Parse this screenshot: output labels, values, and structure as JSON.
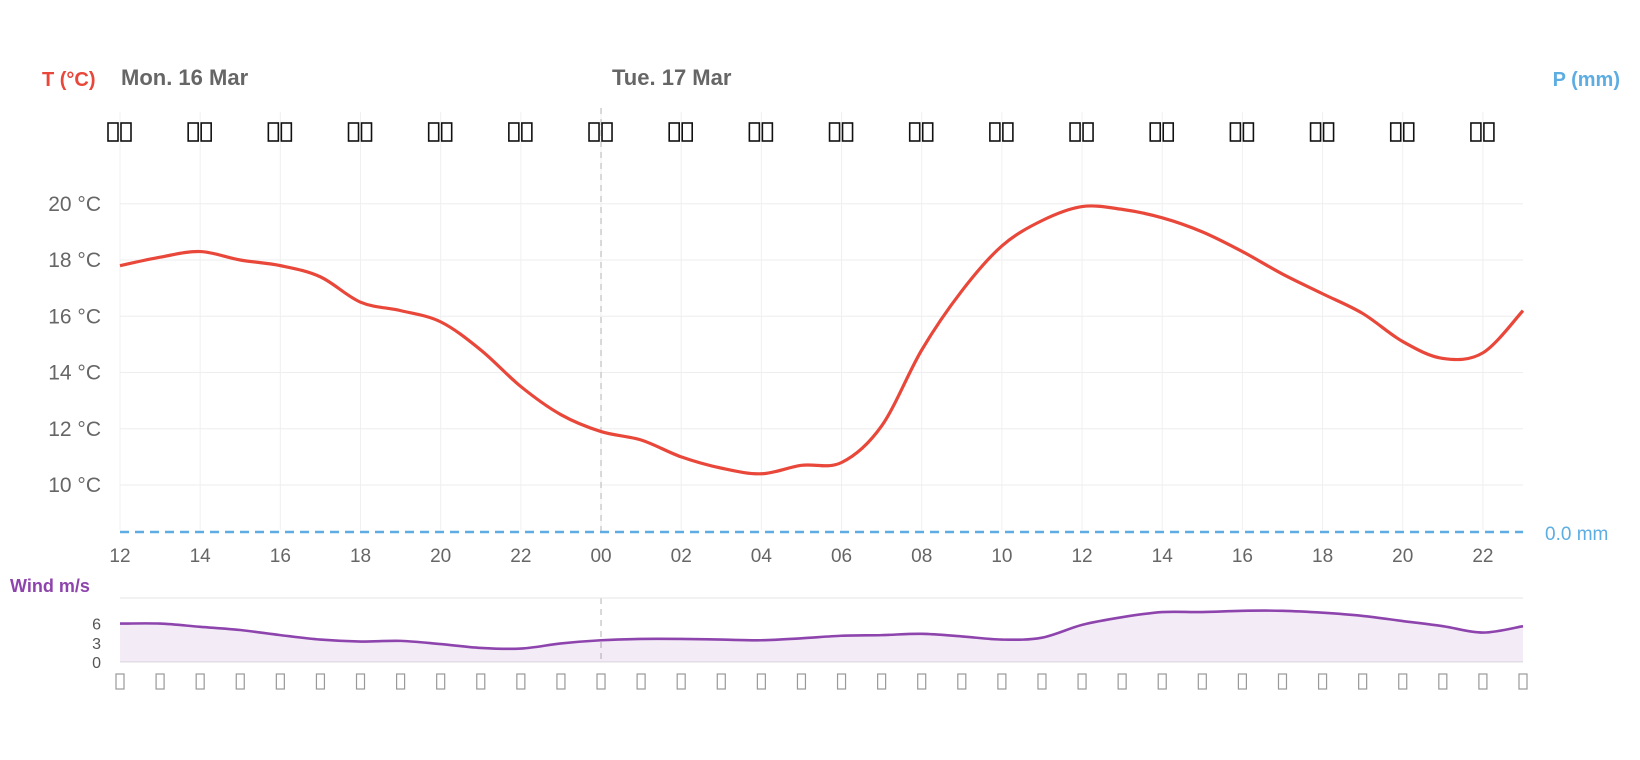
{
  "chart_data": [
    {
      "type": "line",
      "ylabel": "T (°C)",
      "y2label": "P (mm)",
      "days": [
        "Mon. 16 Mar",
        "Tue. 17 Mar"
      ],
      "x": [
        "12",
        "13",
        "14",
        "15",
        "16",
        "17",
        "18",
        "19",
        "20",
        "21",
        "22",
        "23",
        "00",
        "01",
        "02",
        "03",
        "04",
        "05",
        "06",
        "07",
        "08",
        "09",
        "10",
        "11",
        "12",
        "13",
        "14",
        "15",
        "16",
        "17",
        "18",
        "19",
        "20",
        "21",
        "22",
        "23"
      ],
      "x_ticks": [
        "12",
        "14",
        "16",
        "18",
        "20",
        "22",
        "00",
        "02",
        "04",
        "06",
        "08",
        "10",
        "12",
        "14",
        "16",
        "18",
        "20",
        "22"
      ],
      "y_ticks": [
        "20 °C",
        "18 °C",
        "16 °C",
        "14 °C",
        "12 °C",
        "10 °C"
      ],
      "ylim": [
        8.4,
        21.2
      ],
      "icon_row": "weather-icons",
      "series": [
        {
          "name": "T (°C)",
          "color": "#e8473a",
          "values": [
            17.8,
            18.1,
            18.3,
            18.0,
            17.8,
            17.4,
            16.5,
            16.2,
            15.8,
            14.8,
            13.5,
            12.5,
            11.9,
            11.6,
            11.0,
            10.6,
            10.4,
            10.7,
            10.8,
            12.1,
            14.8,
            16.9,
            18.5,
            19.4,
            19.9,
            19.8,
            19.5,
            19.0,
            18.3,
            17.5,
            16.8,
            16.1,
            15.1,
            14.5,
            14.7,
            16.2
          ]
        },
        {
          "name": "P (mm)",
          "color": "#5dade2",
          "values_constant": 0.0,
          "label": "0.0 mm"
        }
      ],
      "grid": true
    },
    {
      "type": "area",
      "ylabel": "Wind m/s",
      "y_ticks": [
        "6",
        "3",
        "0"
      ],
      "ylim": [
        0,
        10
      ],
      "series": [
        {
          "name": "Wind m/s",
          "color": "#8e44ad",
          "values": [
            6.0,
            6.0,
            5.5,
            5.0,
            4.2,
            3.5,
            3.2,
            3.3,
            2.8,
            2.2,
            2.1,
            2.9,
            3.4,
            3.6,
            3.6,
            3.5,
            3.4,
            3.7,
            4.1,
            4.2,
            4.4,
            4.0,
            3.5,
            3.8,
            5.8,
            7.0,
            7.8,
            7.8,
            8.0,
            8.0,
            7.7,
            7.2,
            6.4,
            5.6,
            4.6,
            5.6
          ]
        }
      ],
      "grid": true
    }
  ]
}
